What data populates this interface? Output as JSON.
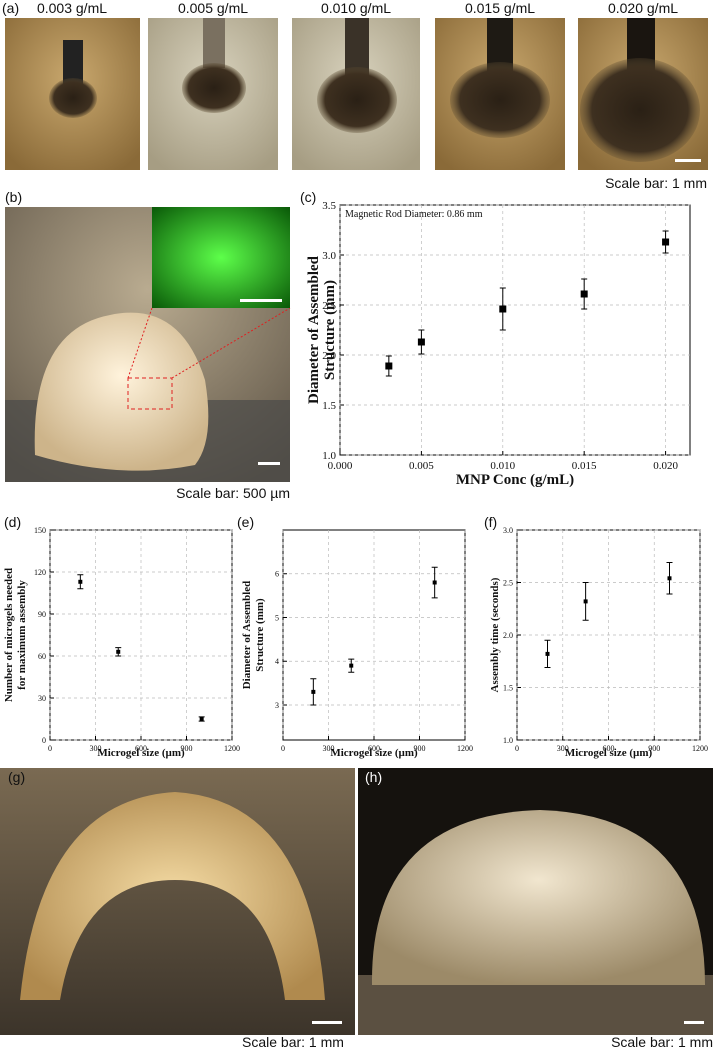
{
  "panel_a": {
    "label": "(a)",
    "images": [
      "0.003 g/mL",
      "0.005 g/mL",
      "0.010 g/mL",
      "0.015 g/mL",
      "0.020 g/mL"
    ],
    "scale_bar": "Scale bar: 1 mm"
  },
  "panel_b": {
    "label": "(b)",
    "scale_bar": "Scale bar: 500 µm"
  },
  "chart_data": [
    {
      "type": "scatter",
      "label": "(c)",
      "annotation": "Magnetic Rod Diameter: 0.86 mm",
      "x": [
        0.003,
        0.005,
        0.01,
        0.015,
        0.02
      ],
      "values": [
        1.89,
        2.13,
        2.46,
        2.61,
        3.13
      ],
      "errors": [
        0.1,
        0.12,
        0.21,
        0.15,
        0.11
      ],
      "color": "#000000",
      "xlim": [
        0,
        0.0215
      ],
      "xticks": [
        {
          "value": 0,
          "label": "0.000"
        },
        0.005,
        {
          "value": 0.01,
          "label": "0.010"
        },
        0.015,
        {
          "value": 0.02,
          "label": "0.020"
        }
      ],
      "ylim": [
        1.0,
        3.5
      ],
      "yticks": [
        {
          "value": 1.0,
          "label": "1.0"
        },
        1.5,
        {
          "value": 2.0,
          "label": "2.0"
        },
        2.5,
        {
          "value": 3.0,
          "label": "3.0"
        },
        3.5
      ],
      "xlabel": "MNP Conc (g/mL)",
      "ylabel": [
        "Diameter of Assembled",
        "Structure (mm)"
      ],
      "grid": true
    },
    {
      "type": "scatter",
      "label": "(d)",
      "x": [
        200,
        450,
        1000
      ],
      "values": [
        113,
        63,
        15
      ],
      "errors": [
        5,
        3,
        1.5
      ],
      "color": "#000000",
      "xlim": [
        0,
        1200
      ],
      "xticks": [
        0,
        300,
        600,
        900,
        1200
      ],
      "ylim": [
        0,
        150
      ],
      "yticks": [
        0,
        30,
        60,
        90,
        120,
        150
      ],
      "xlabel": "Microgel size (µm)",
      "ylabel": [
        "Number of microgels needed",
        "for maximum assembly"
      ],
      "grid": true
    },
    {
      "type": "scatter",
      "label": "(e)",
      "x": [
        200,
        450,
        1000
      ],
      "values": [
        3.3,
        3.9,
        5.8
      ],
      "errors": [
        0.3,
        0.15,
        0.35
      ],
      "color": "#000000",
      "xlim": [
        0,
        1200
      ],
      "xticks": [
        0,
        300,
        600,
        900,
        1200
      ],
      "ylim": [
        2.2,
        7
      ],
      "yticks": [
        3,
        4,
        5,
        6
      ],
      "xlabel": "Microgel size (µm)",
      "ylabel": [
        "Diameter of Assembled",
        "Structure (mm)"
      ],
      "grid": true
    },
    {
      "type": "scatter",
      "label": "(f)",
      "x": [
        200,
        450,
        1000
      ],
      "values": [
        1.82,
        2.32,
        2.54
      ],
      "errors": [
        0.13,
        0.18,
        0.15
      ],
      "color": "#000000",
      "xlim": [
        0,
        1200
      ],
      "xticks": [
        0,
        300,
        600,
        900,
        1200
      ],
      "ylim": [
        1.0,
        3.0
      ],
      "yticks": [
        {
          "value": 1.0,
          "label": "1.0"
        },
        1.5,
        {
          "value": 2.0,
          "label": "2.0"
        },
        2.5,
        {
          "value": 3.0,
          "label": "3.0"
        }
      ],
      "xlabel": "Microgel size (µm)",
      "ylabel": [
        "Assembly time (seconds)"
      ],
      "grid": true
    }
  ],
  "panel_g": {
    "label": "(g)",
    "scale_bar": "Scale bar: 1 mm"
  },
  "panel_h": {
    "label": "(h)",
    "scale_bar": "Scale bar: 1 mm"
  }
}
